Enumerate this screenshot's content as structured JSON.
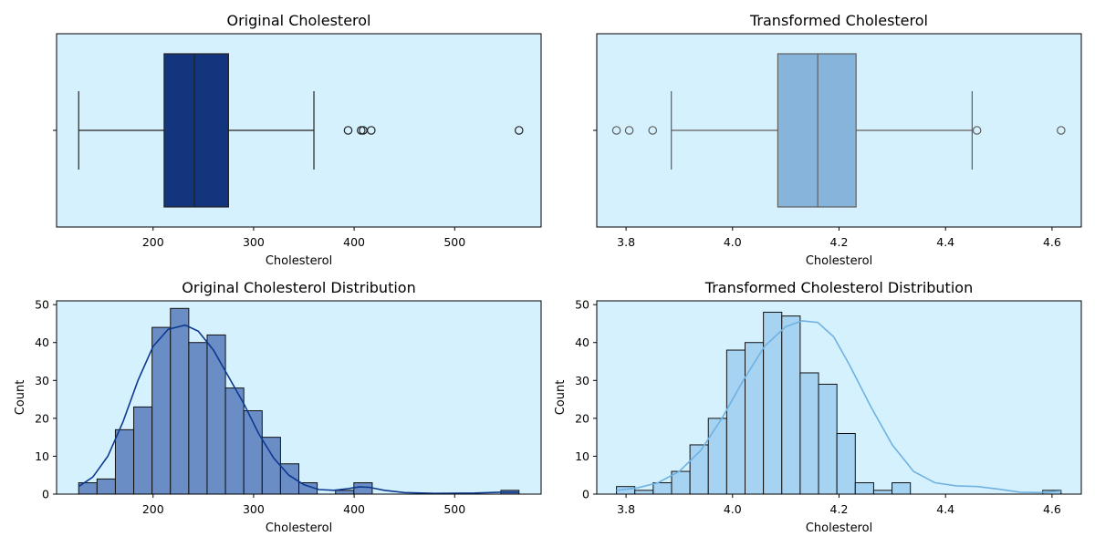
{
  "chart_data": [
    {
      "type": "box",
      "title": "Original Cholesterol",
      "xlabel": "Cholesterol",
      "ylabel": "",
      "xlim": [
        104,
        586
      ],
      "xticks": [
        200,
        300,
        400,
        500
      ],
      "fill_color": "#12357d",
      "line_color": "#222222",
      "background": "#d6f1fe",
      "box": {
        "whisker_low": 126,
        "q1": 211,
        "median": 241,
        "q3": 275,
        "whisker_high": 360
      },
      "outliers": [
        394,
        407,
        409,
        417,
        564
      ]
    },
    {
      "type": "box",
      "title": "Transformed Cholesterol",
      "xlabel": "Cholesterol",
      "ylabel": "",
      "xlim": [
        3.745,
        4.655
      ],
      "xticks": [
        3.8,
        4.0,
        4.2,
        4.4,
        4.6
      ],
      "fill_color": "#86b4da",
      "line_color": "#5f5f5f",
      "background": "#d6f1fe",
      "box": {
        "whisker_low": 3.885,
        "q1": 4.085,
        "median": 4.16,
        "q3": 4.232,
        "whisker_high": 4.45
      },
      "outliers": [
        3.782,
        3.806,
        3.85,
        4.459,
        4.617
      ]
    },
    {
      "type": "histogram",
      "title": "Original Cholesterol Distribution",
      "xlabel": "Cholesterol",
      "ylabel": "Count",
      "xlim": [
        104,
        586
      ],
      "ylim": [
        0,
        51
      ],
      "xticks": [
        200,
        300,
        400,
        500
      ],
      "yticks": [
        0,
        10,
        20,
        30,
        40,
        50
      ],
      "bar_color": "#6a8dc5",
      "kde_color": "#0d3a8f",
      "background": "#d6f1fe",
      "bins": [
        {
          "x0": 126,
          "x1": 144.25,
          "count": 3
        },
        {
          "x0": 144.25,
          "x1": 162.5,
          "count": 4
        },
        {
          "x0": 162.5,
          "x1": 180.75,
          "count": 17
        },
        {
          "x0": 180.75,
          "x1": 199,
          "count": 23
        },
        {
          "x0": 199,
          "x1": 217.25,
          "count": 44
        },
        {
          "x0": 217.25,
          "x1": 235.5,
          "count": 49
        },
        {
          "x0": 235.5,
          "x1": 253.75,
          "count": 40
        },
        {
          "x0": 253.75,
          "x1": 272,
          "count": 42
        },
        {
          "x0": 272,
          "x1": 290.25,
          "count": 28
        },
        {
          "x0": 290.25,
          "x1": 308.5,
          "count": 22
        },
        {
          "x0": 308.5,
          "x1": 326.75,
          "count": 15
        },
        {
          "x0": 326.75,
          "x1": 345,
          "count": 8
        },
        {
          "x0": 345,
          "x1": 363.25,
          "count": 3
        },
        {
          "x0": 381.5,
          "x1": 399.75,
          "count": 1
        },
        {
          "x0": 399.75,
          "x1": 418,
          "count": 3
        },
        {
          "x0": 546,
          "x1": 564,
          "count": 1
        }
      ],
      "kde": [
        [
          126,
          2.0
        ],
        [
          140,
          4.5
        ],
        [
          155,
          10
        ],
        [
          170,
          19
        ],
        [
          185,
          30
        ],
        [
          200,
          39
        ],
        [
          215,
          43.5
        ],
        [
          232,
          44.6
        ],
        [
          245,
          43
        ],
        [
          260,
          38
        ],
        [
          275,
          31
        ],
        [
          290,
          24
        ],
        [
          305,
          16
        ],
        [
          320,
          9.5
        ],
        [
          335,
          5
        ],
        [
          350,
          2.5
        ],
        [
          365,
          1.2
        ],
        [
          380,
          1.0
        ],
        [
          395,
          1.5
        ],
        [
          405,
          1.9
        ],
        [
          415,
          1.8
        ],
        [
          430,
          1.0
        ],
        [
          450,
          0.4
        ],
        [
          480,
          0.2
        ],
        [
          520,
          0.3
        ],
        [
          545,
          0.5
        ],
        [
          564,
          0.5
        ]
      ]
    },
    {
      "type": "histogram",
      "title": "Transformed Cholesterol Distribution",
      "xlabel": "Cholesterol",
      "ylabel": "Count",
      "xlim": [
        3.745,
        4.655
      ],
      "ylim": [
        0,
        51
      ],
      "xticks": [
        3.8,
        4.0,
        4.2,
        4.4,
        4.6
      ],
      "yticks": [
        0,
        10,
        20,
        30,
        40,
        50
      ],
      "bar_color": "#a7d3f3",
      "kde_color": "#6fb2e0",
      "background": "#d6f1fe",
      "bins": [
        {
          "x0": 3.782,
          "x1": 3.8165,
          "count": 2
        },
        {
          "x0": 3.8165,
          "x1": 3.851,
          "count": 1
        },
        {
          "x0": 3.851,
          "x1": 3.8855,
          "count": 3
        },
        {
          "x0": 3.8855,
          "x1": 3.92,
          "count": 6
        },
        {
          "x0": 3.92,
          "x1": 3.9545,
          "count": 13
        },
        {
          "x0": 3.9545,
          "x1": 3.989,
          "count": 20
        },
        {
          "x0": 3.989,
          "x1": 4.0235,
          "count": 38
        },
        {
          "x0": 4.0235,
          "x1": 4.058,
          "count": 40
        },
        {
          "x0": 4.058,
          "x1": 4.0925,
          "count": 48
        },
        {
          "x0": 4.0925,
          "x1": 4.127,
          "count": 47
        },
        {
          "x0": 4.127,
          "x1": 4.1615,
          "count": 32
        },
        {
          "x0": 4.1615,
          "x1": 4.196,
          "count": 29
        },
        {
          "x0": 4.196,
          "x1": 4.2305,
          "count": 16
        },
        {
          "x0": 4.2305,
          "x1": 4.265,
          "count": 3
        },
        {
          "x0": 4.265,
          "x1": 4.2995,
          "count": 1
        },
        {
          "x0": 4.2995,
          "x1": 4.334,
          "count": 3
        },
        {
          "x0": 4.5825,
          "x1": 4.617,
          "count": 1
        }
      ],
      "kde": [
        [
          3.782,
          1.0
        ],
        [
          3.82,
          1.6
        ],
        [
          3.86,
          3.0
        ],
        [
          3.9,
          6.0
        ],
        [
          3.94,
          11.5
        ],
        [
          3.98,
          20
        ],
        [
          4.02,
          30
        ],
        [
          4.06,
          39
        ],
        [
          4.1,
          44.2
        ],
        [
          4.13,
          45.7
        ],
        [
          4.16,
          45.3
        ],
        [
          4.19,
          41.5
        ],
        [
          4.22,
          34
        ],
        [
          4.26,
          23
        ],
        [
          4.3,
          13
        ],
        [
          4.34,
          6
        ],
        [
          4.38,
          3.0
        ],
        [
          4.42,
          2.2
        ],
        [
          4.46,
          2.0
        ],
        [
          4.5,
          1.3
        ],
        [
          4.54,
          0.5
        ],
        [
          4.58,
          0.4
        ],
        [
          4.617,
          0.8
        ]
      ]
    }
  ]
}
